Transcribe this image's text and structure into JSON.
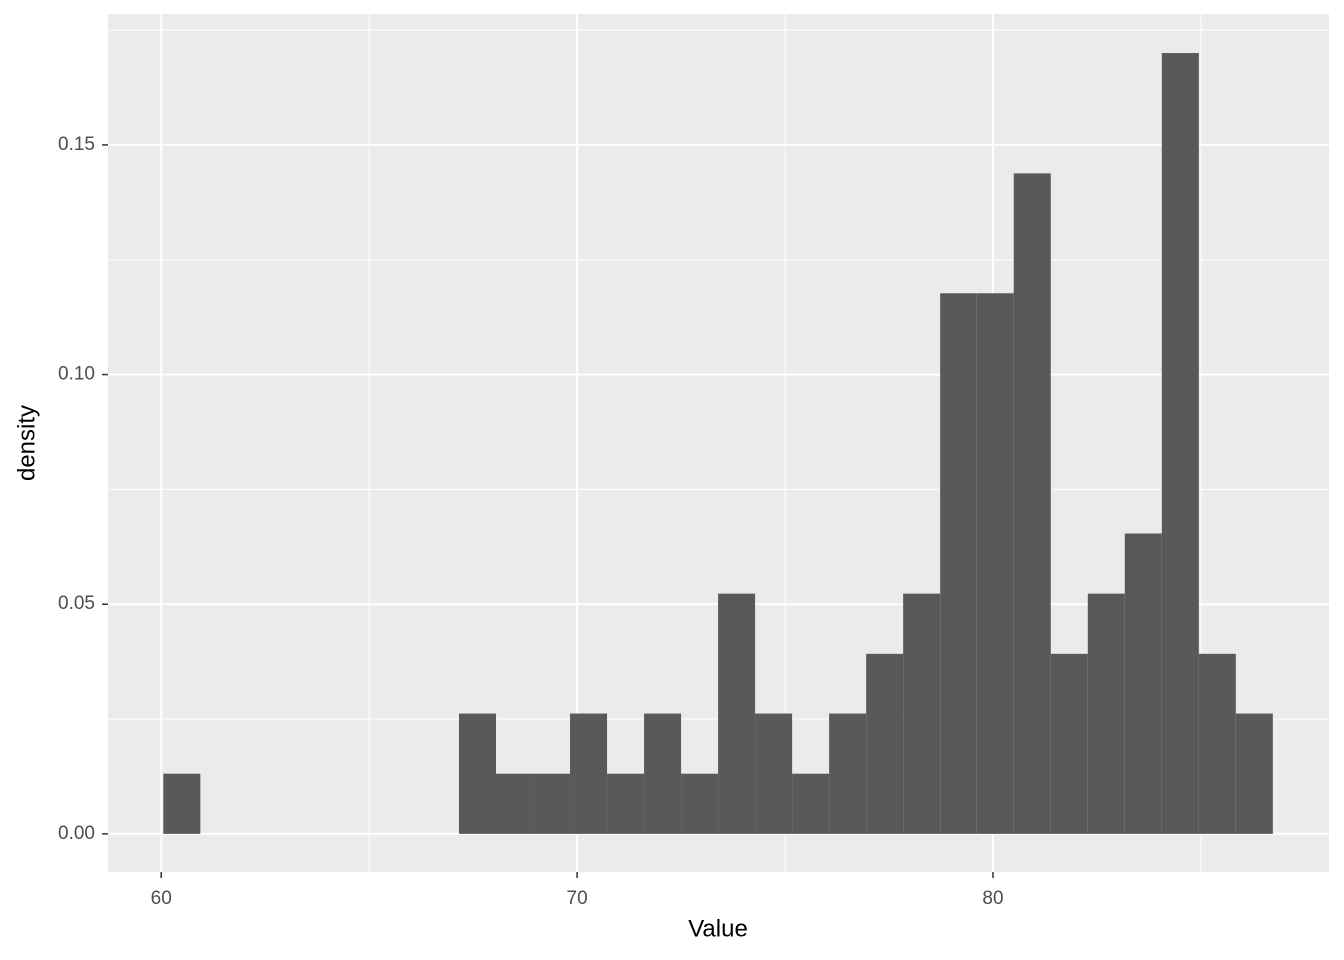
{
  "chart_data": {
    "type": "histogram",
    "x_label": "Value",
    "y_label": "density",
    "bins": [
      60.05,
      60.94,
      61.83,
      62.72,
      63.61,
      64.5,
      65.39,
      66.28,
      67.16,
      68.05,
      68.94,
      69.83,
      70.72,
      71.61,
      72.5,
      73.39,
      74.28,
      75.17,
      76.06,
      76.95,
      77.84,
      78.73,
      79.61,
      80.5,
      81.39,
      82.28,
      83.17,
      84.06,
      84.95,
      85.84,
      86.73
    ],
    "values": [
      0.0131,
      0,
      0,
      0,
      0,
      0,
      0,
      0,
      0.0262,
      0.0131,
      0.0131,
      0.0262,
      0.0131,
      0.0262,
      0.0131,
      0.0523,
      0.0262,
      0.0131,
      0.0262,
      0.0392,
      0.0523,
      0.1177,
      0.1177,
      0.1438,
      0.0392,
      0.0523,
      0.0654,
      0.17,
      0.0392,
      0.0262
    ],
    "color": "#595959",
    "xlim": [
      58.72,
      88.08
    ],
    "xticks": [
      60,
      70,
      80
    ],
    "x_minor_grid": [
      65,
      75,
      85
    ],
    "ylim": [
      -0.0083,
      0.1785
    ],
    "yticks": [
      {
        "value": 0,
        "label": "0.00"
      },
      {
        "value": 0.05,
        "label": "0.05"
      },
      {
        "value": 0.1,
        "label": "0.10"
      },
      {
        "value": 0.15,
        "label": "0.15"
      }
    ],
    "y_minor_grid": [
      0.025,
      0.075,
      0.125,
      0.175
    ],
    "grid": true
  }
}
